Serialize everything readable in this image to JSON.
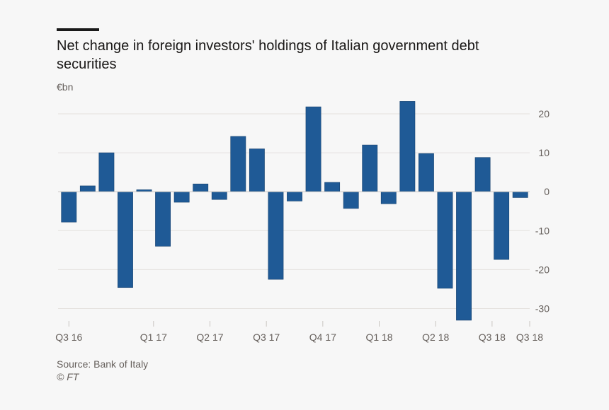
{
  "header": {
    "title": "Net change in foreign investors' holdings of Italian government debt securities",
    "unit": "€bn"
  },
  "footer": {
    "source": "Source: Bank of Italy",
    "copyright": "© FT"
  },
  "colors": {
    "bar": "#1f5a96",
    "bar_edge": "#16426f",
    "grid": "#e4e1de",
    "zero_line": "#c9c5c1",
    "tick_text": "#66605c",
    "background": "#f7f7f7"
  },
  "chart_data": {
    "type": "bar",
    "title": "Net change in foreign investors' holdings of Italian government debt securities",
    "ylabel": "€bn",
    "xlabel": "",
    "ylim": [
      -33,
      22
    ],
    "yticks": [
      20,
      10,
      0,
      -10,
      -20,
      -30
    ],
    "ytick_labels": [
      "20",
      "10",
      "0",
      "-10",
      "-20",
      "-30"
    ],
    "grid": true,
    "y_axis_side": "right",
    "x_tick_labels": [
      {
        "label": "Q3 16",
        "at_bar": 0
      },
      {
        "label": "Q1 17",
        "at_bar": 4.5
      },
      {
        "label": "Q2 17",
        "at_bar": 7.5
      },
      {
        "label": "Q3 17",
        "at_bar": 10.5
      },
      {
        "label": "Q4 17",
        "at_bar": 13.5
      },
      {
        "label": "Q1 18",
        "at_bar": 16.5
      },
      {
        "label": "Q2 18",
        "at_bar": 19.5
      },
      {
        "label": "Q3 18",
        "at_bar": 22.5
      },
      {
        "label": "Q3 18",
        "at_bar": 24.5
      }
    ],
    "series": [
      {
        "name": "Net change",
        "values": [
          -7.8,
          1.5,
          10,
          -24.6,
          0.5,
          -14,
          -2.7,
          2,
          -2,
          14.2,
          11,
          -22.5,
          -2.4,
          21.8,
          2.4,
          -4.3,
          12,
          -3.1,
          23.2,
          9.8,
          -24.8,
          -33,
          8.8,
          -17.4,
          -1.5
        ]
      }
    ]
  }
}
